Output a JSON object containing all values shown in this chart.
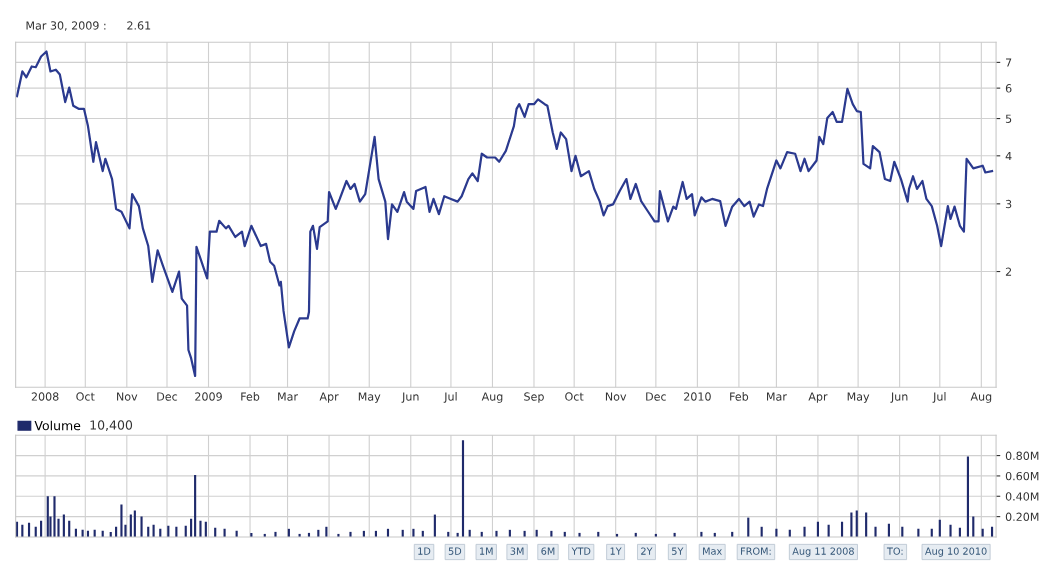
{
  "chart_data": [
    {
      "type": "line",
      "annotations": [
        "Mar 30, 2009 :",
        "2.61"
      ],
      "x": [
        "2008-08-11",
        "2008-08-15",
        "2008-08-18",
        "2008-08-22",
        "2008-08-25",
        "2008-08-29",
        "2008-09-02",
        "2008-09-05",
        "2008-09-09",
        "2008-09-12",
        "2008-09-16",
        "2008-09-19",
        "2008-09-22",
        "2008-09-26",
        "2008-09-30",
        "2008-10-03",
        "2008-10-07",
        "2008-10-09",
        "2008-10-14",
        "2008-10-16",
        "2008-10-21",
        "2008-10-24",
        "2008-10-28",
        "2008-11-03",
        "2008-11-05",
        "2008-11-10",
        "2008-11-13",
        "2008-11-17",
        "2008-11-20",
        "2008-11-24",
        "2008-11-28",
        "2008-12-05",
        "2008-12-10",
        "2008-12-12",
        "2008-12-16",
        "2008-12-17",
        "2008-12-19",
        "2008-12-22",
        "2008-12-23",
        "2008-12-26",
        "2008-12-31",
        "2009-01-02",
        "2009-01-07",
        "2009-01-09",
        "2009-01-14",
        "2009-01-16",
        "2009-01-21",
        "2009-01-26",
        "2009-01-28",
        "2009-02-02",
        "2009-02-09",
        "2009-02-13",
        "2009-02-16",
        "2009-02-19",
        "2009-02-23",
        "2009-02-24",
        "2009-02-26",
        "2009-03-02",
        "2009-03-06",
        "2009-03-10",
        "2009-03-16",
        "2009-03-17",
        "2009-03-18",
        "2009-03-20",
        "2009-03-23",
        "2009-03-25",
        "2009-03-31",
        "2009-04-01",
        "2009-04-06",
        "2009-04-09",
        "2009-04-14",
        "2009-04-17",
        "2009-04-20",
        "2009-04-24",
        "2009-04-28",
        "2009-05-05",
        "2009-05-08",
        "2009-05-13",
        "2009-05-15",
        "2009-05-18",
        "2009-05-22",
        "2009-05-27",
        "2009-05-29",
        "2009-06-03",
        "2009-06-05",
        "2009-06-12",
        "2009-06-15",
        "2009-06-18",
        "2009-06-22",
        "2009-06-26",
        "2009-07-01",
        "2009-07-06",
        "2009-07-09",
        "2009-07-14",
        "2009-07-17",
        "2009-07-21",
        "2009-07-24",
        "2009-07-28",
        "2009-08-03",
        "2009-08-06",
        "2009-08-11",
        "2009-08-17",
        "2009-08-19",
        "2009-08-21",
        "2009-08-25",
        "2009-08-28",
        "2009-09-01",
        "2009-09-04",
        "2009-09-09",
        "2009-09-11",
        "2009-09-15",
        "2009-09-18",
        "2009-09-21",
        "2009-09-25",
        "2009-09-29",
        "2009-10-02",
        "2009-10-06",
        "2009-10-12",
        "2009-10-16",
        "2009-10-20",
        "2009-10-23",
        "2009-10-26",
        "2009-10-30",
        "2009-11-04",
        "2009-11-09",
        "2009-11-12",
        "2009-11-16",
        "2009-11-20",
        "2009-11-25",
        "2009-11-30",
        "2009-12-03",
        "2009-12-04",
        "2009-12-10",
        "2009-12-14",
        "2009-12-16",
        "2009-12-21",
        "2009-12-24",
        "2009-12-28",
        "2009-12-30",
        "2010-01-04",
        "2010-01-07",
        "2010-01-12",
        "2010-01-18",
        "2010-01-22",
        "2010-01-27",
        "2010-02-01",
        "2010-02-05",
        "2010-02-09",
        "2010-02-12",
        "2010-02-16",
        "2010-02-19",
        "2010-02-22",
        "2010-03-01",
        "2010-03-04",
        "2010-03-09",
        "2010-03-15",
        "2010-03-19",
        "2010-03-22",
        "2010-03-25",
        "2010-03-31",
        "2010-04-02",
        "2010-04-05",
        "2010-04-08",
        "2010-04-12",
        "2010-04-15",
        "2010-04-19",
        "2010-04-23",
        "2010-04-27",
        "2010-04-30",
        "2010-05-03",
        "2010-05-05",
        "2010-05-10",
        "2010-05-12",
        "2010-05-17",
        "2010-05-21",
        "2010-05-25",
        "2010-05-28",
        "2010-06-02",
        "2010-06-07",
        "2010-06-08",
        "2010-06-11",
        "2010-06-14",
        "2010-06-18",
        "2010-06-21",
        "2010-06-25",
        "2010-06-29",
        "2010-07-02",
        "2010-07-07",
        "2010-07-09",
        "2010-07-12",
        "2010-07-16",
        "2010-07-19",
        "2010-07-21",
        "2010-07-26",
        "2010-08-02",
        "2010-08-04",
        "2010-08-09"
      ],
      "series": [
        {
          "color": "#2b3a8f",
          "values": [
            5.72,
            6.63,
            6.4,
            6.83,
            6.8,
            7.25,
            7.47,
            6.63,
            6.7,
            6.51,
            5.52,
            6.02,
            5.4,
            5.3,
            5.3,
            4.78,
            3.86,
            4.34,
            3.65,
            3.93,
            3.48,
            2.91,
            2.86,
            2.59,
            3.18,
            2.96,
            2.59,
            2.33,
            1.88,
            2.27,
            2.07,
            1.77,
            2.0,
            1.7,
            1.63,
            1.25,
            1.19,
            1.07,
            2.32,
            2.16,
            1.92,
            2.54,
            2.54,
            2.71,
            2.59,
            2.63,
            2.46,
            2.54,
            2.33,
            2.63,
            2.33,
            2.36,
            2.12,
            2.07,
            1.84,
            1.88,
            1.58,
            1.27,
            1.4,
            1.51,
            1.51,
            1.57,
            2.54,
            2.63,
            2.29,
            2.61,
            2.7,
            3.22,
            2.91,
            3.09,
            3.44,
            3.28,
            3.38,
            3.04,
            3.18,
            4.48,
            3.48,
            3.04,
            2.43,
            2.99,
            2.86,
            3.22,
            3.04,
            2.91,
            3.24,
            3.32,
            2.86,
            3.09,
            2.82,
            3.14,
            3.09,
            3.04,
            3.14,
            3.48,
            3.6,
            3.44,
            4.05,
            3.96,
            3.96,
            3.86,
            4.12,
            4.78,
            5.3,
            5.45,
            5.05,
            5.45,
            5.45,
            5.61,
            5.45,
            5.4,
            4.6,
            4.17,
            4.6,
            4.42,
            3.65,
            4.0,
            3.54,
            3.65,
            3.28,
            3.05,
            2.8,
            2.96,
            2.99,
            3.24,
            3.48,
            3.09,
            3.38,
            3.05,
            2.87,
            2.7,
            2.7,
            3.24,
            2.7,
            2.95,
            2.91,
            3.42,
            3.09,
            3.18,
            2.8,
            3.12,
            3.04,
            3.09,
            3.05,
            2.63,
            2.95,
            3.09,
            2.96,
            3.04,
            2.78,
            2.99,
            2.96,
            3.28,
            3.89,
            3.71,
            4.09,
            4.05,
            3.65,
            3.93,
            3.65,
            3.89,
            4.48,
            4.29,
            5.02,
            5.2,
            4.9,
            4.9,
            5.97,
            5.45,
            5.23,
            5.2,
            3.81,
            3.71,
            4.24,
            4.09,
            3.48,
            3.44,
            3.86,
            3.48,
            3.04,
            3.28,
            3.54,
            3.28,
            3.44,
            3.09,
            2.96,
            2.63,
            2.33,
            2.96,
            2.74,
            2.95,
            2.63,
            2.54,
            3.93,
            3.71,
            3.77,
            3.62,
            3.65
          ]
        }
      ],
      "xlim": [
        "2008-08-10",
        "2010-08-12"
      ],
      "xticks": [
        {
          "value": "2008-09-01",
          "label": "2008"
        },
        {
          "value": "2008-10-01",
          "label": "Oct"
        },
        {
          "value": "2008-11-01",
          "label": "Nov"
        },
        {
          "value": "2008-12-01",
          "label": "Dec"
        },
        {
          "value": "2009-01-01",
          "label": "2009"
        },
        {
          "value": "2009-02-01",
          "label": "Feb"
        },
        {
          "value": "2009-03-01",
          "label": "Mar"
        },
        {
          "value": "2009-04-01",
          "label": "Apr"
        },
        {
          "value": "2009-05-01",
          "label": "May"
        },
        {
          "value": "2009-06-01",
          "label": "Jun"
        },
        {
          "value": "2009-07-01",
          "label": "Jul"
        },
        {
          "value": "2009-08-01",
          "label": "Aug"
        },
        {
          "value": "2009-09-01",
          "label": "Sep"
        },
        {
          "value": "2009-10-01",
          "label": "Oct"
        },
        {
          "value": "2009-11-01",
          "label": "Nov"
        },
        {
          "value": "2009-12-01",
          "label": "Dec"
        },
        {
          "value": "2010-01-01",
          "label": "2010"
        },
        {
          "value": "2010-02-01",
          "label": "Feb"
        },
        {
          "value": "2010-03-01",
          "label": "Mar"
        },
        {
          "value": "2010-04-01",
          "label": "Apr"
        },
        {
          "value": "2010-05-01",
          "label": "May"
        },
        {
          "value": "2010-06-01",
          "label": "Jun"
        },
        {
          "value": "2010-07-01",
          "label": "Jul"
        },
        {
          "value": "2010-08-01",
          "label": "Aug"
        }
      ],
      "ylim": [
        1.0,
        7.9
      ],
      "yticks": [
        2,
        3,
        4,
        5,
        6,
        7
      ],
      "log": true,
      "grid": true
    },
    {
      "type": "bar",
      "annotations": [
        "10,400",
        "1D",
        "5D",
        "1M",
        "3M",
        "6M",
        "YTD",
        "1Y",
        "2Y",
        "5Y",
        "Max",
        "FROM:",
        "Aug 11 2008",
        "TO:",
        "Aug 10 2010"
      ],
      "x": [
        "2008-08-11",
        "2008-08-15",
        "2008-08-20",
        "2008-08-25",
        "2008-08-29",
        "2008-09-03",
        "2008-09-05",
        "2008-09-08",
        "2008-09-11",
        "2008-09-15",
        "2008-09-19",
        "2008-09-24",
        "2008-09-29",
        "2008-10-03",
        "2008-10-08",
        "2008-10-14",
        "2008-10-20",
        "2008-10-24",
        "2008-10-28",
        "2008-10-31",
        "2008-11-04",
        "2008-11-07",
        "2008-11-12",
        "2008-11-17",
        "2008-11-21",
        "2008-11-26",
        "2008-12-02",
        "2008-12-08",
        "2008-12-15",
        "2008-12-19",
        "2008-12-22",
        "2008-12-26",
        "2008-12-30",
        "2009-01-06",
        "2009-01-13",
        "2009-01-22",
        "2009-02-02",
        "2009-02-12",
        "2009-02-20",
        "2009-03-02",
        "2009-03-10",
        "2009-03-17",
        "2009-03-24",
        "2009-03-30",
        "2009-04-08",
        "2009-04-17",
        "2009-04-27",
        "2009-05-06",
        "2009-05-15",
        "2009-05-26",
        "2009-06-03",
        "2009-06-10",
        "2009-06-19",
        "2009-06-29",
        "2009-07-06",
        "2009-07-10",
        "2009-07-15",
        "2009-07-24",
        "2009-08-04",
        "2009-08-14",
        "2009-08-25",
        "2009-09-03",
        "2009-09-14",
        "2009-09-24",
        "2009-10-05",
        "2009-10-19",
        "2009-11-02",
        "2009-11-16",
        "2009-12-01",
        "2009-12-15",
        "2010-01-04",
        "2010-01-14",
        "2010-01-27",
        "2010-02-08",
        "2010-02-18",
        "2010-03-01",
        "2010-03-11",
        "2010-03-22",
        "2010-04-01",
        "2010-04-09",
        "2010-04-19",
        "2010-04-26",
        "2010-04-30",
        "2010-05-07",
        "2010-05-14",
        "2010-05-24",
        "2010-06-03",
        "2010-06-15",
        "2010-06-25",
        "2010-07-01",
        "2010-07-09",
        "2010-07-16",
        "2010-07-22",
        "2010-07-26",
        "2010-08-02",
        "2010-08-09"
      ],
      "series": [
        {
          "name": "Volume",
          "color": "#1f2a6b",
          "values": [
            0.15,
            0.12,
            0.14,
            0.1,
            0.16,
            0.4,
            0.2,
            0.4,
            0.18,
            0.22,
            0.16,
            0.08,
            0.07,
            0.06,
            0.07,
            0.06,
            0.05,
            0.1,
            0.32,
            0.12,
            0.22,
            0.26,
            0.2,
            0.1,
            0.12,
            0.08,
            0.11,
            0.1,
            0.11,
            0.18,
            0.61,
            0.16,
            0.15,
            0.09,
            0.08,
            0.06,
            0.04,
            0.03,
            0.05,
            0.08,
            0.03,
            0.04,
            0.07,
            0.1,
            0.03,
            0.05,
            0.06,
            0.06,
            0.08,
            0.07,
            0.08,
            0.06,
            0.22,
            0.05,
            0.04,
            0.95,
            0.07,
            0.05,
            0.06,
            0.07,
            0.06,
            0.07,
            0.06,
            0.05,
            0.04,
            0.05,
            0.03,
            0.04,
            0.03,
            0.04,
            0.05,
            0.04,
            0.05,
            0.19,
            0.1,
            0.08,
            0.07,
            0.1,
            0.15,
            0.12,
            0.15,
            0.24,
            0.26,
            0.24,
            0.1,
            0.13,
            0.1,
            0.08,
            0.08,
            0.17,
            0.12,
            0.09,
            0.79,
            0.2,
            0.08,
            0.1
          ]
        }
      ],
      "xlim": [
        "2008-08-10",
        "2010-08-12"
      ],
      "xticks": [
        {
          "value": "2008-09-01",
          "label": null
        },
        {
          "value": "2008-10-01",
          "label": null
        },
        {
          "value": "2008-11-01",
          "label": null
        },
        {
          "value": "2008-12-01",
          "label": null
        },
        {
          "value": "2009-01-01",
          "label": null
        },
        {
          "value": "2009-02-01",
          "label": null
        },
        {
          "value": "2009-03-01",
          "label": null
        },
        {
          "value": "2009-04-01",
          "label": null
        },
        {
          "value": "2009-05-01",
          "label": null
        },
        {
          "value": "2009-06-01",
          "label": null
        },
        {
          "value": "2009-07-01",
          "label": null
        },
        {
          "value": "2009-08-01",
          "label": null
        },
        {
          "value": "2009-09-01",
          "label": null
        },
        {
          "value": "2009-10-01",
          "label": null
        },
        {
          "value": "2009-11-01",
          "label": null
        },
        {
          "value": "2009-12-01",
          "label": null
        },
        {
          "value": "2010-01-01",
          "label": null
        },
        {
          "value": "2010-02-01",
          "label": null
        },
        {
          "value": "2010-03-01",
          "label": null
        },
        {
          "value": "2010-04-01",
          "label": null
        },
        {
          "value": "2010-05-01",
          "label": null
        },
        {
          "value": "2010-06-01",
          "label": null
        },
        {
          "value": "2010-07-01",
          "label": null
        },
        {
          "value": "2010-08-01",
          "label": null
        }
      ],
      "ylim": [
        0,
        1.0
      ],
      "yticks": [
        {
          "value": 0.2,
          "label": "0.20M"
        },
        {
          "value": 0.4,
          "label": "0.40M"
        },
        {
          "value": 0.6,
          "label": "0.60M"
        },
        {
          "value": 0.8,
          "label": "0.80M"
        }
      ],
      "tick_labels": "y",
      "grid": true,
      "legend": "top left"
    }
  ]
}
